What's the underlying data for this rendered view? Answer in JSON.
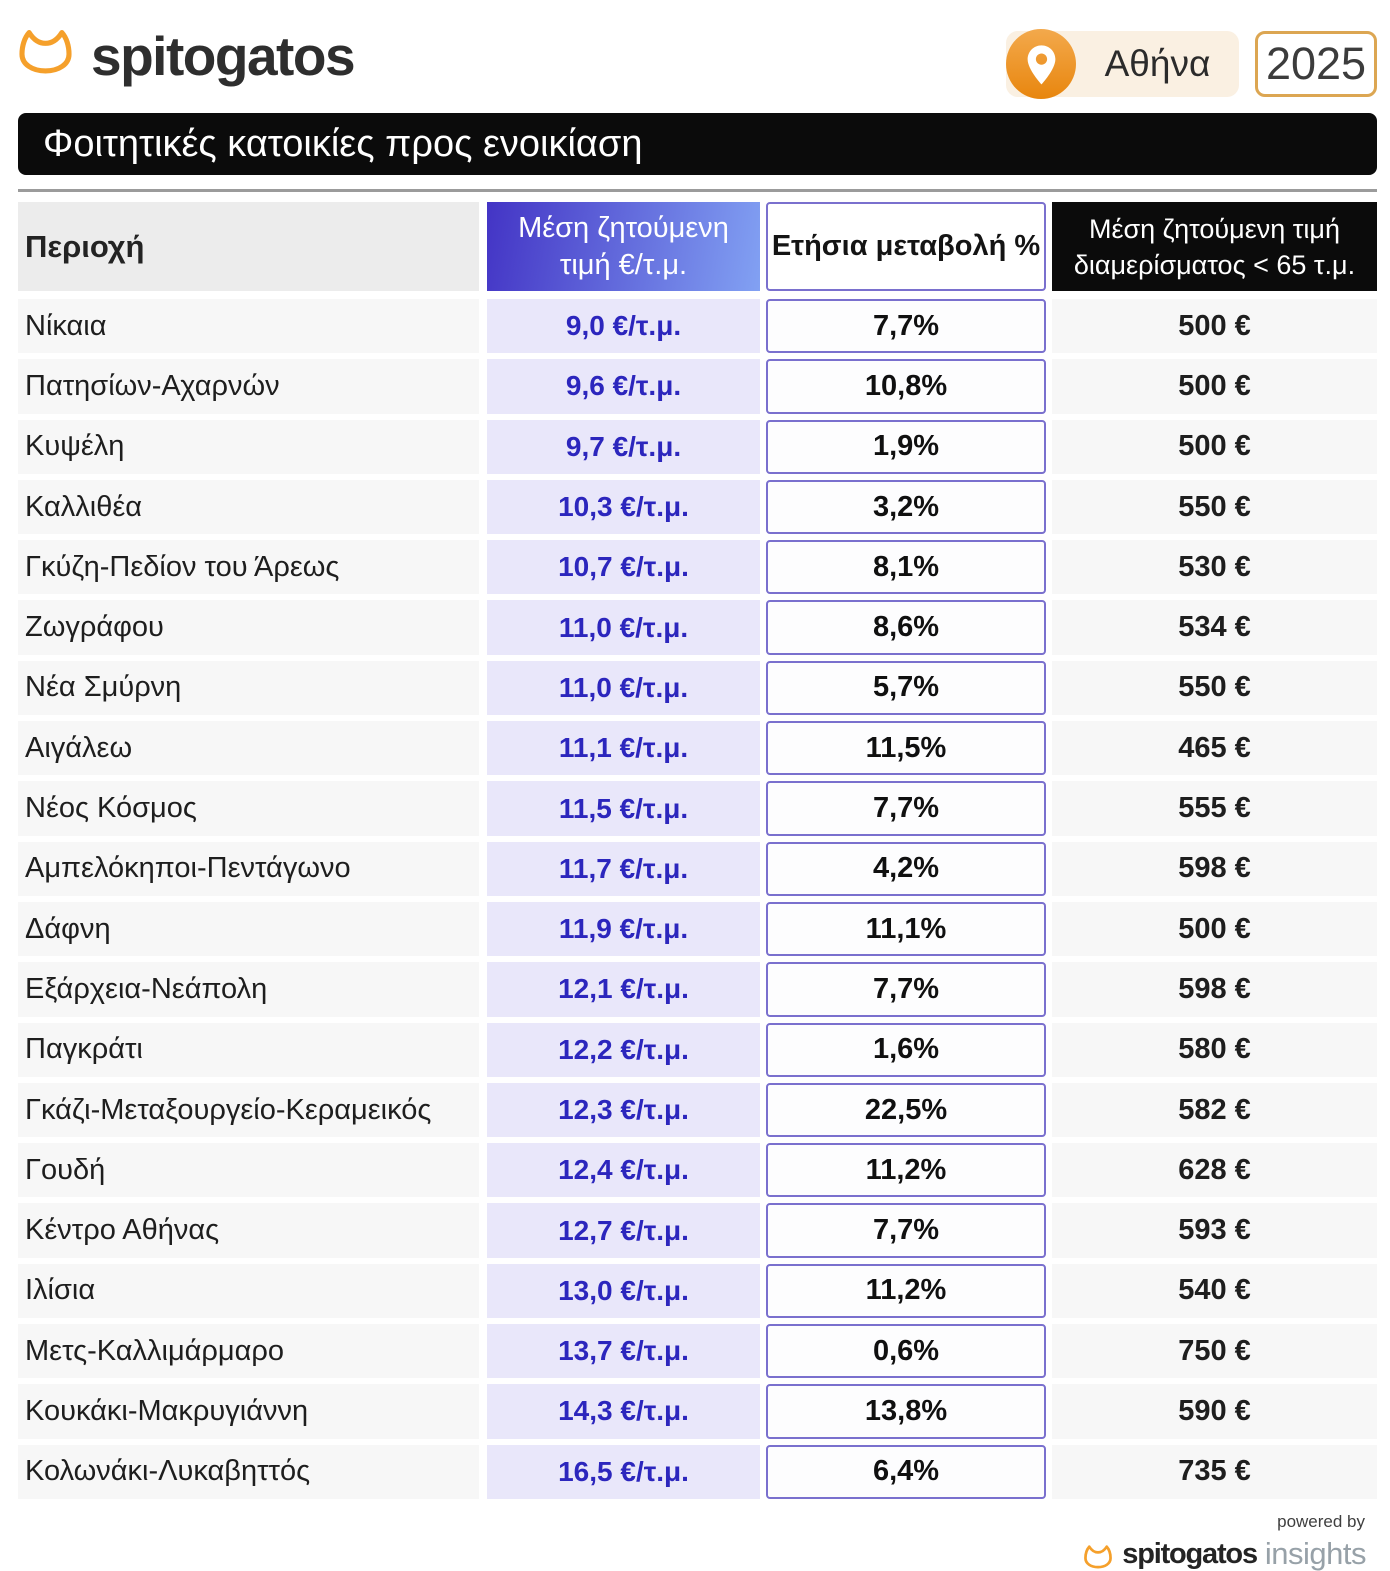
{
  "brand": {
    "logo_text": "spitogatos"
  },
  "header": {
    "location": "Αθήνα",
    "year": "2025"
  },
  "title_bar": {
    "text": "Φοιτητικές κατοικίες προς ενοικίαση"
  },
  "table": {
    "columns": {
      "area": "Περιοχή",
      "price_line1": "Μέση ζητούμενη",
      "price_line2": "τιμή €/τ.μ.",
      "change": "Ετήσια μεταβολή %",
      "small_line1": "Μέση ζητούμενη τιμή",
      "small_line2": "διαμερίσματος < 65 τ.μ."
    },
    "rows": [
      {
        "area": "Νίκαια",
        "price": "9,0 €/τ.μ.",
        "change": "7,7%",
        "small_flat_price": "500 €"
      },
      {
        "area": "Πατησίων-Αχαρνών",
        "price": "9,6 €/τ.μ.",
        "change": "10,8%",
        "small_flat_price": "500 €"
      },
      {
        "area": "Κυψέλη",
        "price": "9,7 €/τ.μ.",
        "change": "1,9%",
        "small_flat_price": "500 €"
      },
      {
        "area": "Καλλιθέα",
        "price": "10,3 €/τ.μ.",
        "change": "3,2%",
        "small_flat_price": "550 €"
      },
      {
        "area": "Γκύζη-Πεδίον του Άρεως",
        "price": "10,7 €/τ.μ.",
        "change": "8,1%",
        "small_flat_price": "530 €"
      },
      {
        "area": "Ζωγράφου",
        "price": "11,0 €/τ.μ.",
        "change": "8,6%",
        "small_flat_price": "534 €"
      },
      {
        "area": "Νέα Σμύρνη",
        "price": "11,0 €/τ.μ.",
        "change": "5,7%",
        "small_flat_price": "550 €"
      },
      {
        "area": "Αιγάλεω",
        "price": "11,1 €/τ.μ.",
        "change": "11,5%",
        "small_flat_price": "465 €"
      },
      {
        "area": "Νέος Κόσμος",
        "price": "11,5 €/τ.μ.",
        "change": "7,7%",
        "small_flat_price": "555 €"
      },
      {
        "area": "Αμπελόκηποι-Πεντάγωνο",
        "price": "11,7 €/τ.μ.",
        "change": "4,2%",
        "small_flat_price": "598 €"
      },
      {
        "area": "Δάφνη",
        "price": "11,9 €/τ.μ.",
        "change": "11,1%",
        "small_flat_price": "500 €"
      },
      {
        "area": "Εξάρχεια-Νεάπολη",
        "price": "12,1 €/τ.μ.",
        "change": "7,7%",
        "small_flat_price": "598 €"
      },
      {
        "area": "Παγκράτι",
        "price": "12,2 €/τ.μ.",
        "change": "1,6%",
        "small_flat_price": "580 €"
      },
      {
        "area": "Γκάζι-Μεταξουργείο-Κεραμεικός",
        "price": "12,3 €/τ.μ.",
        "change": "22,5%",
        "small_flat_price": "582 €"
      },
      {
        "area": "Γουδή",
        "price": "12,4 €/τ.μ.",
        "change": "11,2%",
        "small_flat_price": "628 €"
      },
      {
        "area": "Κέντρο Αθήνας",
        "price": "12,7 €/τ.μ.",
        "change": "7,7%",
        "small_flat_price": "593 €"
      },
      {
        "area": "Ιλίσια",
        "price": "13,0 €/τ.μ.",
        "change": "11,2%",
        "small_flat_price": "540 €"
      },
      {
        "area": "Μετς-Καλλιμάρμαρο",
        "price": "13,7 €/τ.μ.",
        "change": "0,6%",
        "small_flat_price": "750 €"
      },
      {
        "area": "Κουκάκι-Μακρυγιάννη",
        "price": "14,3 €/τ.μ.",
        "change": "13,8%",
        "small_flat_price": "590 €"
      },
      {
        "area": "Κολωνάκι-Λυκαβηττός",
        "price": "16,5 €/τ.μ.",
        "change": "6,4%",
        "small_flat_price": "735 €"
      }
    ]
  },
  "footer": {
    "powered_by": "powered by",
    "brand": "spitogatos",
    "suffix": "insights"
  },
  "colors": {
    "brand_orange": "#f5a02b",
    "pin_gradient_top": "#f3a94c",
    "pin_gradient_bottom": "#e8860e",
    "chip_background": "#faf0e2",
    "year_border": "#dca652",
    "banner_black": "#0b0b0b",
    "header_gradient_left": "#4334c5",
    "header_gradient_right": "#82a1f3",
    "price_cell_background": "#e9e7fa",
    "price_text_blue": "#2c26bd",
    "change_border_purple": "#7a70ce",
    "row_gray": "#f7f7f7",
    "header_gray": "#ececec"
  },
  "chart_data": {
    "type": "table",
    "title": "Φοιτητικές κατοικίες προς ενοικίαση",
    "location": "Αθήνα",
    "year": 2025,
    "columns": [
      "Περιοχή",
      "Μέση ζητούμενη τιμή €/τ.μ.",
      "Ετήσια μεταβολή %",
      "Μέση ζητούμενη τιμή διαμερίσματος < 65 τ.μ."
    ],
    "rows": [
      [
        "Νίκαια",
        9.0,
        7.7,
        500
      ],
      [
        "Πατησίων-Αχαρνών",
        9.6,
        10.8,
        500
      ],
      [
        "Κυψέλη",
        9.7,
        1.9,
        500
      ],
      [
        "Καλλιθέα",
        10.3,
        3.2,
        550
      ],
      [
        "Γκύζη-Πεδίον του Άρεως",
        10.7,
        8.1,
        530
      ],
      [
        "Ζωγράφου",
        11.0,
        8.6,
        534
      ],
      [
        "Νέα Σμύρνη",
        11.0,
        5.7,
        550
      ],
      [
        "Αιγάλεω",
        11.1,
        11.5,
        465
      ],
      [
        "Νέος Κόσμος",
        11.5,
        7.7,
        555
      ],
      [
        "Αμπελόκηποι-Πεντάγωνο",
        11.7,
        4.2,
        598
      ],
      [
        "Δάφνη",
        11.9,
        11.1,
        500
      ],
      [
        "Εξάρχεια-Νεάπολη",
        12.1,
        7.7,
        598
      ],
      [
        "Παγκράτι",
        12.2,
        1.6,
        580
      ],
      [
        "Γκάζι-Μεταξουργείο-Κεραμεικός",
        12.3,
        22.5,
        582
      ],
      [
        "Γουδή",
        12.4,
        11.2,
        628
      ],
      [
        "Κέντρο Αθήνας",
        12.7,
        7.7,
        593
      ],
      [
        "Ιλίσια",
        13.0,
        11.2,
        540
      ],
      [
        "Μετς-Καλλιμάρμαρο",
        13.7,
        0.6,
        750
      ],
      [
        "Κουκάκι-Μακρυγιάννη",
        14.3,
        13.8,
        590
      ],
      [
        "Κολωνάκι-Λυκαβηττός",
        16.5,
        6.4,
        735
      ]
    ],
    "units": {
      "price": "€/τ.μ.",
      "change": "%",
      "small_flat_price": "€"
    }
  }
}
